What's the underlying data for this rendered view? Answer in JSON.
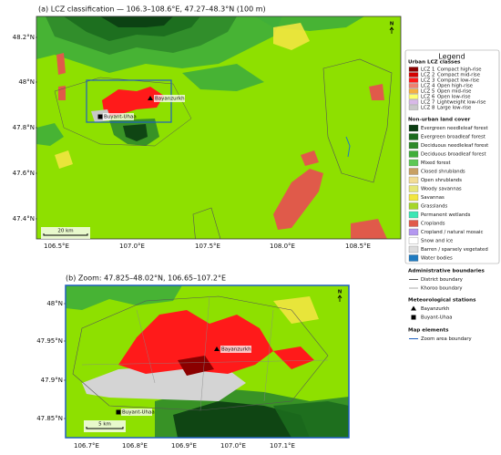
{
  "panel_a": {
    "title": "(a)  LCZ classification — 106.3–108.6°E, 47.27–48.3°N  (100 m)",
    "lat_labels": [
      "48.2°N",
      "48°N",
      "47.8°N",
      "47.6°N",
      "47.4°N"
    ],
    "lon_labels": [
      "106.5°E",
      "107.0°E",
      "107.5°E",
      "108.0°E",
      "108.5°E"
    ],
    "stations": [
      "Bayanzurkh",
      "Buyant-Uhaa"
    ],
    "scale_bar": "20 km",
    "north": "N"
  },
  "panel_b": {
    "title": "(b)  Zoom: 47.825–48.02°N,  106.65–107.2°E",
    "lat_labels": [
      "48°N",
      "47.95°N",
      "47.9°N",
      "47.85°N"
    ],
    "lon_labels": [
      "106.7°E",
      "106.8°E",
      "106.9°E",
      "107.0°E",
      "107.1°E"
    ],
    "stations": [
      "Bayanzurkh",
      "Buyant-Uhaa"
    ],
    "scale_bar": "5 km",
    "north": "N"
  },
  "legend": {
    "title": "Legend",
    "sections": [
      {
        "heading": "Urban LCZ classes",
        "items": [
          {
            "code": "LCZ 1",
            "label": "Compact high-rise",
            "color": "#8b0000",
            "symbol": "box"
          },
          {
            "code": "LCZ 2",
            "label": "Compact mid-rise",
            "color": "#d40000",
            "symbol": "box"
          },
          {
            "code": "LCZ 3",
            "label": "Compact low-rise",
            "color": "#ff1a1a",
            "symbol": "box"
          },
          {
            "code": "LCZ 4",
            "label": "Open high-rise",
            "color": "#f08070",
            "symbol": "box"
          },
          {
            "code": "LCZ 5",
            "label": "Open mid-rise",
            "color": "#f5b040",
            "symbol": "box"
          },
          {
            "code": "LCZ 6",
            "label": "Open low-rise",
            "color": "#ffff70",
            "symbol": "box"
          },
          {
            "code": "LCZ 7",
            "label": "Lightweight low-rise",
            "color": "#d8b8e8",
            "symbol": "box"
          },
          {
            "code": "LCZ 8",
            "label": "Large low-rise",
            "color": "#c8c8c8",
            "symbol": "box"
          }
        ]
      },
      {
        "heading": "Non-urban land cover",
        "items": [
          {
            "label": "Evergreen needleleaf forest",
            "color": "#0b3d12",
            "symbol": "box"
          },
          {
            "label": "Evergreen broadleaf forest",
            "color": "#1c6b1e",
            "symbol": "box"
          },
          {
            "label": "Deciduous needleleaf forest",
            "color": "#2f8a2a",
            "symbol": "box"
          },
          {
            "label": "Deciduous broadleaf forest",
            "color": "#3fae3a",
            "symbol": "box"
          },
          {
            "label": "Mixed forest",
            "color": "#5ec855",
            "symbol": "box"
          },
          {
            "label": "Closed shrublands",
            "color": "#c8a064",
            "symbol": "box"
          },
          {
            "label": "Open shrublands",
            "color": "#f2dc96",
            "symbol": "box"
          },
          {
            "label": "Woody savannas",
            "color": "#e6e67a",
            "symbol": "box"
          },
          {
            "label": "Savannas",
            "color": "#f2e640",
            "symbol": "box"
          },
          {
            "label": "Grasslands",
            "color": "#a6d62a",
            "symbol": "box"
          },
          {
            "label": "Permanent wetlands",
            "color": "#3ce6b4",
            "symbol": "box"
          },
          {
            "label": "Croplands",
            "color": "#e05a4a",
            "symbol": "box"
          },
          {
            "label": "Cropland / natural mosaic",
            "color": "#b498f0",
            "symbol": "box"
          },
          {
            "label": "Snow and ice",
            "color": "#ffffff",
            "symbol": "box"
          },
          {
            "label": "Barren / sparsely vegetated",
            "color": "#dcdcdc",
            "symbol": "box"
          },
          {
            "label": "Water bodies",
            "color": "#1f7ac0",
            "symbol": "box"
          }
        ]
      },
      {
        "heading": "Administrative boundaries",
        "items": [
          {
            "label": "District boundary",
            "color": "#555555",
            "symbol": "line"
          },
          {
            "label": "Khoroo boundary",
            "color": "#aaaaaa",
            "symbol": "line"
          }
        ]
      },
      {
        "heading": "Meteorological stations",
        "items": [
          {
            "label": "Bayanzurkh",
            "color": "#000000",
            "symbol": "triangle"
          },
          {
            "label": "Buyant-Uhaa",
            "color": "#000000",
            "symbol": "square"
          }
        ]
      },
      {
        "heading": "Map elements",
        "items": [
          {
            "label": "Zoom area boundary",
            "color": "#1f5fbf",
            "symbol": "line"
          }
        ]
      }
    ]
  }
}
